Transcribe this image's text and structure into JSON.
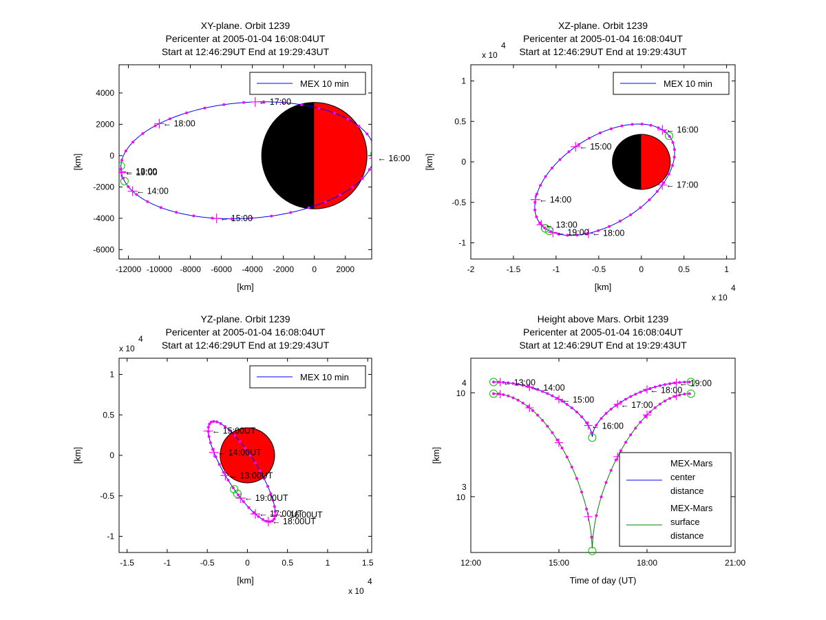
{
  "figure": {
    "background": "#ffffff"
  },
  "colors": {
    "orbit": "#0000ff",
    "marker": "#ff00ff",
    "start_end": "#00c000",
    "surface": "#008000",
    "mars_day": "#ff0000",
    "mars_night": "#000000"
  },
  "chart_data": [
    {
      "id": "xy",
      "type": "line",
      "title": [
        "XY-plane.  Orbit 1239",
        "Pericenter at 2005-01-04 16:08:04UT",
        "Start at 12:46:29UT End at 19:29:43UT"
      ],
      "xlabel": "[km]",
      "ylabel": "[km]",
      "xlim": [
        -12600,
        3700
      ],
      "ylim": [
        -6600,
        5800
      ],
      "xticks": [
        -12000,
        -10000,
        -8000,
        -6000,
        -4000,
        -2000,
        0,
        2000
      ],
      "xtick_labels": [
        "-12000",
        "-10000",
        "-8000",
        "-6000",
        "-4000",
        "-2000",
        "0",
        "2000"
      ],
      "yticks": [
        -6000,
        -4000,
        -2000,
        0,
        2000,
        4000
      ],
      "ytick_labels": [
        "-6000",
        "-4000",
        "-2000",
        "0",
        "2000",
        "4000"
      ],
      "legend": {
        "label": "MEX 10 min",
        "location": "top-right"
      },
      "mars": {
        "center": [
          0,
          0
        ],
        "radius": 3400,
        "day_side": "+x"
      },
      "orbit": {
        "center": [
          -4300,
          -300
        ],
        "a": 8200,
        "b": 3700,
        "rot_deg": 4
      },
      "ticks": [
        {
          "label": "19:00",
          "t": 3.2
        },
        {
          "label": "18:00",
          "t": 2.31
        },
        {
          "label": "17:00",
          "t": 1.48
        },
        {
          "label": "16:00",
          "t": -0.12
        },
        {
          "label": "15:00",
          "t": -1.85
        },
        {
          "label": "14:00",
          "t": -2.74
        },
        {
          "label": "13:00",
          "t": -3.1
        }
      ],
      "start_t": -3.2,
      "end_t": 3.35
    },
    {
      "id": "xz",
      "type": "line",
      "title": [
        "XZ-plane.  Orbit 1239",
        "Pericenter at 2005-01-04 16:08:04UT",
        "Start at 12:46:29UT End at 19:29:43UT"
      ],
      "xlabel": "[km]",
      "ylabel": "[km]",
      "axis_multiplier": "x 10",
      "axis_exponent": "4",
      "xlim": [
        -2.0,
        1.1
      ],
      "ylim": [
        -1.2,
        1.2
      ],
      "xticks": [
        -2,
        -1.5,
        -1,
        -0.5,
        0,
        0.5,
        1
      ],
      "xtick_labels": [
        "-2",
        "-1.5",
        "-1",
        "-0.5",
        "0",
        "0.5",
        "1"
      ],
      "yticks": [
        -1,
        -0.5,
        0,
        0.5,
        1
      ],
      "ytick_labels": [
        "-1",
        "-0.5",
        "0",
        "0.5",
        "1"
      ],
      "legend": {
        "label": "MEX 10 min",
        "location": "top-right"
      },
      "mars": {
        "center": [
          0,
          0
        ],
        "radius": 0.34,
        "day_side": "+x"
      },
      "orbit": {
        "center": [
          -0.43,
          -0.22
        ],
        "a": 0.93,
        "b": 0.53,
        "rot_deg": 35
      },
      "ticks": [
        {
          "label": "16:00",
          "t": 0.22
        },
        {
          "label": "15:00",
          "t": 1.62
        },
        {
          "label": "14:00",
          "t": 2.62
        },
        {
          "label": "13:00",
          "t": 3.2
        },
        {
          "label": "19:00",
          "t": 3.5
        },
        {
          "label": "18:00",
          "t": 4.1
        },
        {
          "label": "17:00",
          "t": 5.3
        }
      ],
      "start_t": 3.32,
      "end_t": 3.42
    },
    {
      "id": "yz",
      "type": "line",
      "title": [
        "YZ-plane.  Orbit 1239",
        "Pericenter at 2005-01-04 16:08:04UT",
        "Start at 12:46:29UT End at 19:29:43UT"
      ],
      "xlabel": "[km]",
      "ylabel": "[km]",
      "axis_multiplier_y": "x 10",
      "axis_multiplier_x": "x 10",
      "axis_exponent": "4",
      "xlim": [
        -1.6,
        1.55
      ],
      "ylim": [
        -1.2,
        1.2
      ],
      "xticks": [
        -1.5,
        -1,
        -0.5,
        0,
        0.5,
        1,
        1.5
      ],
      "xtick_labels": [
        "-1.5",
        "-1",
        "-0.5",
        "0",
        "0.5",
        "1",
        "1.5"
      ],
      "yticks": [
        -1,
        -0.5,
        0,
        0.5,
        1
      ],
      "ytick_labels": [
        "-1",
        "-0.5",
        "0",
        "0.5",
        "1"
      ],
      "legend": {
        "label": "MEX 10 min",
        "location": "top-right"
      },
      "mars": {
        "center": [
          0,
          0
        ],
        "radius": 0.34,
        "day_side": "full"
      },
      "orbit": {
        "center": [
          -0.07,
          -0.2
        ],
        "a": 0.72,
        "b": 0.2,
        "rot_deg": -58
      },
      "ticks": [
        {
          "label": "15:00UT",
          "t": 3.6
        },
        {
          "label": "16:00UT",
          "t": 0.35
        },
        {
          "label": "14:00UT",
          "t": 4.15
        },
        {
          "label": "13:00UT",
          "t": 4.62
        },
        {
          "label": "19:00UT",
          "t": 5.1
        },
        {
          "label": "17:00UT",
          "t": 5.55
        },
        {
          "label": "18:00UT",
          "t": 6.05
        }
      ],
      "start_t": 4.9,
      "end_t": 5.0
    },
    {
      "id": "height",
      "type": "line",
      "title": [
        "Height above Mars.  Orbit 1239",
        "Pericenter at 2005-01-04 16:08:04UT",
        "Start at 12:46:29UT End at 19:29:43UT"
      ],
      "xlabel": "Time of day (UT)",
      "ylabel": "[km]",
      "yscale": "log",
      "xlim": [
        12.0,
        21.0
      ],
      "ylim": [
        290,
        21500
      ],
      "xticks": [
        12,
        15,
        18,
        21
      ],
      "xtick_labels": [
        "12:00",
        "15:00",
        "18:00",
        "21:00"
      ],
      "yticks": [
        1000,
        10000
      ],
      "ytick_base": "10",
      "ytick_exponents": [
        "3",
        "4"
      ],
      "legend": {
        "location": "bottom-right",
        "entries": [
          {
            "label": [
              "MEX-Mars",
              "center",
              "distance"
            ],
            "color": "#0000ff"
          },
          {
            "label": [
              "MEX-Mars",
              "surface",
              "distance"
            ],
            "color": "#008000"
          }
        ]
      },
      "series": [
        {
          "name": "MEX-Mars center distance",
          "start": 12.775,
          "end": 19.495,
          "pericenter": 16.134,
          "peri_value": 3700,
          "apo_value": 12700
        },
        {
          "name": "MEX-Mars surface distance",
          "start": 12.775,
          "end": 19.495,
          "pericenter": 16.134,
          "peri_value": 300,
          "apo_value": 9800
        }
      ],
      "hour_labels": [
        {
          "label": "13:00",
          "t": 13.0
        },
        {
          "label": "14:00",
          "t": 14.0
        },
        {
          "label": "15:00",
          "t": 15.0
        },
        {
          "label": "16:00",
          "t": 16.0
        },
        {
          "label": "17:00",
          "t": 17.0
        },
        {
          "label": "18:00",
          "t": 18.0
        },
        {
          "label": "19:00",
          "t": 19.0
        }
      ]
    }
  ]
}
